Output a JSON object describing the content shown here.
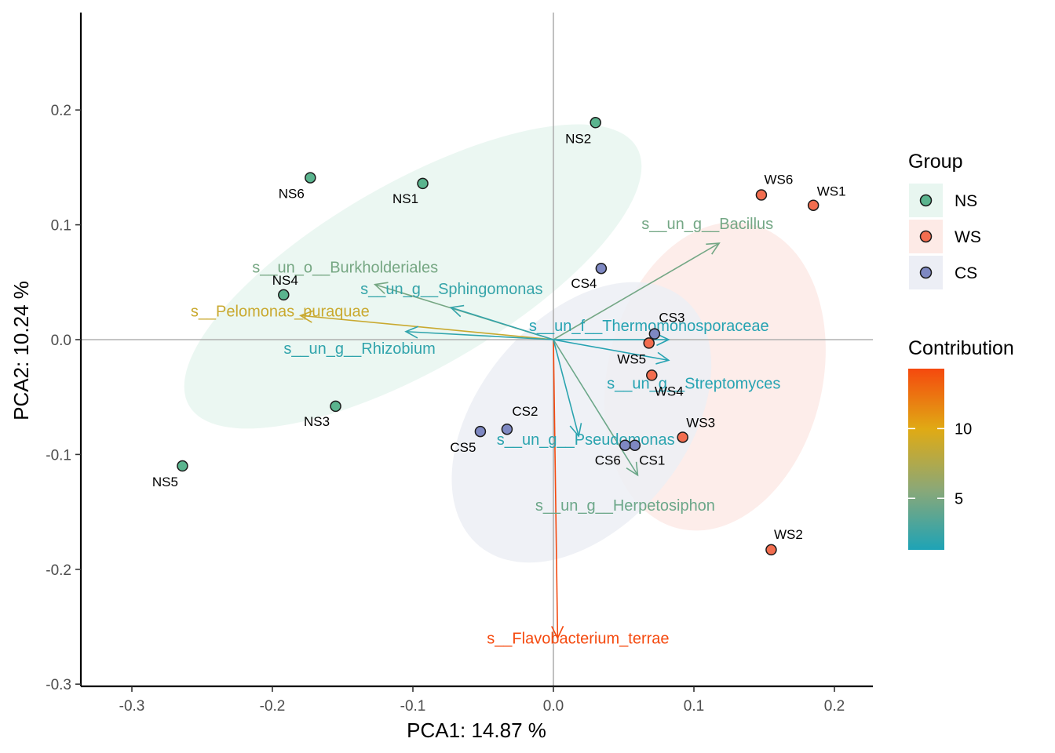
{
  "chart_data": {
    "type": "scatter",
    "subtype": "pca-biplot",
    "title": "",
    "xlabel": "PCA1:  14.87 %",
    "ylabel": "PCA2:  10.24 %",
    "xlim": [
      -0.335,
      0.228
    ],
    "ylim": [
      -0.303,
      0.286
    ],
    "xticks": [
      -0.3,
      -0.2,
      -0.1,
      0.0,
      0.1,
      0.2
    ],
    "xtick_labels": [
      "-0.3",
      "-0.2",
      "-0.1",
      "0.0",
      "0.1",
      "0.2"
    ],
    "yticks": [
      -0.3,
      -0.2,
      -0.1,
      0.0,
      0.1,
      0.2
    ],
    "ytick_labels": [
      "-0.3",
      "-0.2",
      "-0.1",
      "0.0",
      "0.1",
      "0.2"
    ],
    "grid": false,
    "reference_lines": {
      "x": 0,
      "y": 0
    },
    "legend": {
      "placement": "right",
      "group_title": "Group",
      "groups": [
        {
          "name": "NS",
          "color": "#5ab48e",
          "fill": "#e8f6f0"
        },
        {
          "name": "WS",
          "color": "#f26d4f",
          "fill": "#fdeae6"
        },
        {
          "name": "CS",
          "color": "#7e88c2",
          "fill": "#eceef5"
        }
      ],
      "colorbar_title": "Contribution",
      "colorbar_range": [
        1.3,
        14.3
      ],
      "colorbar_ticks": [
        5,
        10
      ],
      "colorbar_tick_labels": [
        "5",
        "10"
      ],
      "colorbar_colors": [
        "#1ea3b6",
        "#8ba877",
        "#e0aa14",
        "#f5490e"
      ]
    },
    "ellipses": [
      {
        "group": "NS",
        "cx": -0.1,
        "cy": 0.055,
        "rx": 0.195,
        "ry": 0.075,
        "angle_deg": 35.2
      },
      {
        "group": "WS",
        "cx": 0.115,
        "cy": -0.032,
        "rx": 0.135,
        "ry": 0.077,
        "angle_deg": 79
      },
      {
        "group": "CS",
        "cx": 0.02,
        "cy": -0.072,
        "rx": 0.13,
        "ry": 0.078,
        "angle_deg": 56
      }
    ],
    "points": [
      {
        "label": "NS1",
        "group": "NS",
        "x": -0.093,
        "y": 0.136
      },
      {
        "label": "NS2",
        "group": "NS",
        "x": 0.03,
        "y": 0.189
      },
      {
        "label": "NS3",
        "group": "NS",
        "x": -0.155,
        "y": -0.058
      },
      {
        "label": "NS4",
        "group": "NS",
        "x": -0.192,
        "y": 0.039
      },
      {
        "label": "NS5",
        "group": "NS",
        "x": -0.264,
        "y": -0.11
      },
      {
        "label": "NS6",
        "group": "NS",
        "x": -0.173,
        "y": 0.141
      },
      {
        "label": "WS1",
        "group": "WS",
        "x": 0.185,
        "y": 0.117
      },
      {
        "label": "WS2",
        "group": "WS",
        "x": 0.155,
        "y": -0.183
      },
      {
        "label": "WS3",
        "group": "WS",
        "x": 0.092,
        "y": -0.085
      },
      {
        "label": "WS4",
        "group": "WS",
        "x": 0.07,
        "y": -0.031
      },
      {
        "label": "WS5",
        "group": "WS",
        "x": 0.068,
        "y": -0.003
      },
      {
        "label": "WS6",
        "group": "WS",
        "x": 0.148,
        "y": 0.126
      },
      {
        "label": "CS1",
        "group": "CS",
        "x": 0.058,
        "y": -0.092
      },
      {
        "label": "CS2",
        "group": "CS",
        "x": -0.033,
        "y": -0.078
      },
      {
        "label": "CS3",
        "group": "CS",
        "x": 0.072,
        "y": 0.005
      },
      {
        "label": "CS4",
        "group": "CS",
        "x": 0.034,
        "y": 0.062
      },
      {
        "label": "CS5",
        "group": "CS",
        "x": -0.052,
        "y": -0.08
      },
      {
        "label": "CS6",
        "group": "CS",
        "x": 0.051,
        "y": -0.092
      }
    ],
    "arrows": [
      {
        "name": "s__Flavobacterium_terrae",
        "x": 0.003,
        "y": -0.26,
        "contribution": 14.3
      },
      {
        "name": "s__Pelomonas_puraquae",
        "x": -0.18,
        "y": 0.021,
        "contribution": 8.8
      },
      {
        "name": "s__un_o__Burkholderiales",
        "x": -0.127,
        "y": 0.048,
        "contribution": 4.8
      },
      {
        "name": "s__un_g__Bacillus",
        "x": 0.118,
        "y": 0.084,
        "contribution": 4.7
      },
      {
        "name": "s__un_g__Herpetosiphon",
        "x": 0.06,
        "y": -0.118,
        "contribution": 4.4
      },
      {
        "name": "s__un_g__Rhizobium",
        "x": -0.105,
        "y": 0.007,
        "contribution": 2.0
      },
      {
        "name": "s__un_g__Sphingomonas",
        "x": -0.073,
        "y": 0.028,
        "contribution": 2.2
      },
      {
        "name": "s__un_f__Thermomonosporaceae",
        "x": 0.082,
        "y": 0.0,
        "contribution": 1.6
      },
      {
        "name": "s__un_g__Streptomyces",
        "x": 0.082,
        "y": -0.018,
        "contribution": 1.6
      },
      {
        "name": "s__un_g__Pseudomonas",
        "x": 0.018,
        "y": -0.084,
        "contribution": 1.8
      }
    ]
  }
}
